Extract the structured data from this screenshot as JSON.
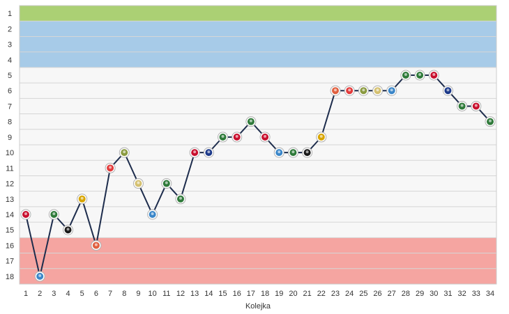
{
  "chart_data": {
    "type": "line",
    "xlabel": "Kolejka",
    "ylabel": "",
    "x": [
      1,
      2,
      3,
      4,
      5,
      6,
      7,
      8,
      9,
      10,
      11,
      12,
      13,
      14,
      15,
      16,
      17,
      18,
      19,
      20,
      21,
      22,
      23,
      24,
      25,
      26,
      27,
      28,
      29,
      30,
      31,
      32,
      33,
      34
    ],
    "y": [
      14,
      18,
      14,
      15,
      13,
      16,
      11,
      10,
      12,
      14,
      12,
      13,
      10,
      10,
      9,
      9,
      8,
      9,
      10,
      10,
      10,
      9,
      6,
      6,
      6,
      6,
      6,
      5,
      5,
      5,
      6,
      7,
      7,
      8
    ],
    "ylim": [
      1,
      18
    ],
    "y_inverted": true,
    "y_ticks": [
      1,
      2,
      3,
      4,
      5,
      6,
      7,
      8,
      9,
      10,
      11,
      12,
      13,
      14,
      15,
      16,
      17,
      18
    ],
    "bands": [
      {
        "from": 1,
        "to": 1,
        "color": "#abd074"
      },
      {
        "from": 2,
        "to": 4,
        "color": "#a7cbe8"
      },
      {
        "from": 5,
        "to": 15,
        "color": "#f7f7f7"
      },
      {
        "from": 16,
        "to": 18,
        "color": "#f5a5a1"
      }
    ],
    "line_color": "#1d2c4c",
    "marker_colors": [
      "#c8102e",
      "#3a86c8",
      "#2f7a3a",
      "#1a1a1a",
      "#d8a500",
      "#e06040",
      "#e23b3b",
      "#8a9a40",
      "#d4c070",
      "#3a86c8",
      "#2f7a3a",
      "#2f7a3a",
      "#c8102e",
      "#1d3a8a",
      "#2f7a3a",
      "#c8102e",
      "#2f7a3a",
      "#c8102e",
      "#3a86c8",
      "#2f7a3a",
      "#1a1a1a",
      "#d8a500",
      "#e06040",
      "#e23b3b",
      "#8a9a40",
      "#d4c070",
      "#3a86c8",
      "#2f7a3a",
      "#2f7a3a",
      "#c8102e",
      "#1d3a8a",
      "#2f7a3a",
      "#c8102e",
      "#2f7a3a"
    ]
  }
}
